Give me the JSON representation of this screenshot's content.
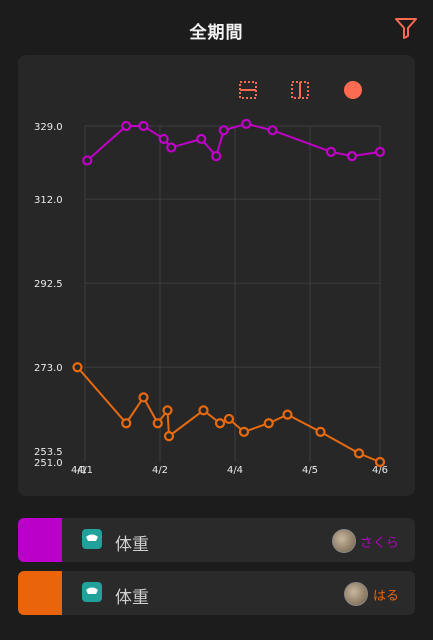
{
  "header": {
    "title": "全期間",
    "filter_icon": "filter-icon"
  },
  "toolbar": {
    "icons": [
      "fit-vertical-icon",
      "fit-horizontal-icon",
      "dot-toggle-icon"
    ]
  },
  "chart_data": {
    "type": "line",
    "x_ticks": [
      "4/1",
      "4/2",
      "4/4",
      "4/5",
      "4/6"
    ],
    "x_tick_extra": "4/1",
    "y_ticks": [
      "329.0",
      "312.0",
      "292.5",
      "273.0",
      "253.5",
      "251.0"
    ],
    "ylim": [
      251.0,
      329.0
    ],
    "grid": true,
    "series": [
      {
        "name": "さくら",
        "color": "#c000c8",
        "x": [
          0.03,
          0.55,
          0.78,
          1.05,
          1.15,
          1.55,
          1.75,
          1.85,
          2.15,
          2.5,
          3.3,
          3.6,
          4.0
        ],
        "y": [
          321.0,
          329.0,
          329.0,
          326.0,
          324.0,
          326.0,
          322.0,
          328.0,
          329.5,
          328.0,
          323.0,
          322.0,
          323.0
        ]
      },
      {
        "name": "はる",
        "color": "#e86a10",
        "x": [
          -0.1,
          0.55,
          0.78,
          0.97,
          1.1,
          1.12,
          1.58,
          1.8,
          1.92,
          2.12,
          2.45,
          2.7,
          3.15,
          3.7,
          4.0
        ],
        "y": [
          273.0,
          260.0,
          266.0,
          260.0,
          263.0,
          257.0,
          263.0,
          260.0,
          261.0,
          258.0,
          260.0,
          262.0,
          258.0,
          253.0,
          251.0
        ]
      }
    ]
  },
  "legend": [
    {
      "color": "#bb00c9",
      "label": "体重",
      "user": "さくら",
      "user_color": "#b400c4"
    },
    {
      "color": "#e9640a",
      "label": "体重",
      "user": "はる",
      "user_color": "#e9640a"
    }
  ]
}
